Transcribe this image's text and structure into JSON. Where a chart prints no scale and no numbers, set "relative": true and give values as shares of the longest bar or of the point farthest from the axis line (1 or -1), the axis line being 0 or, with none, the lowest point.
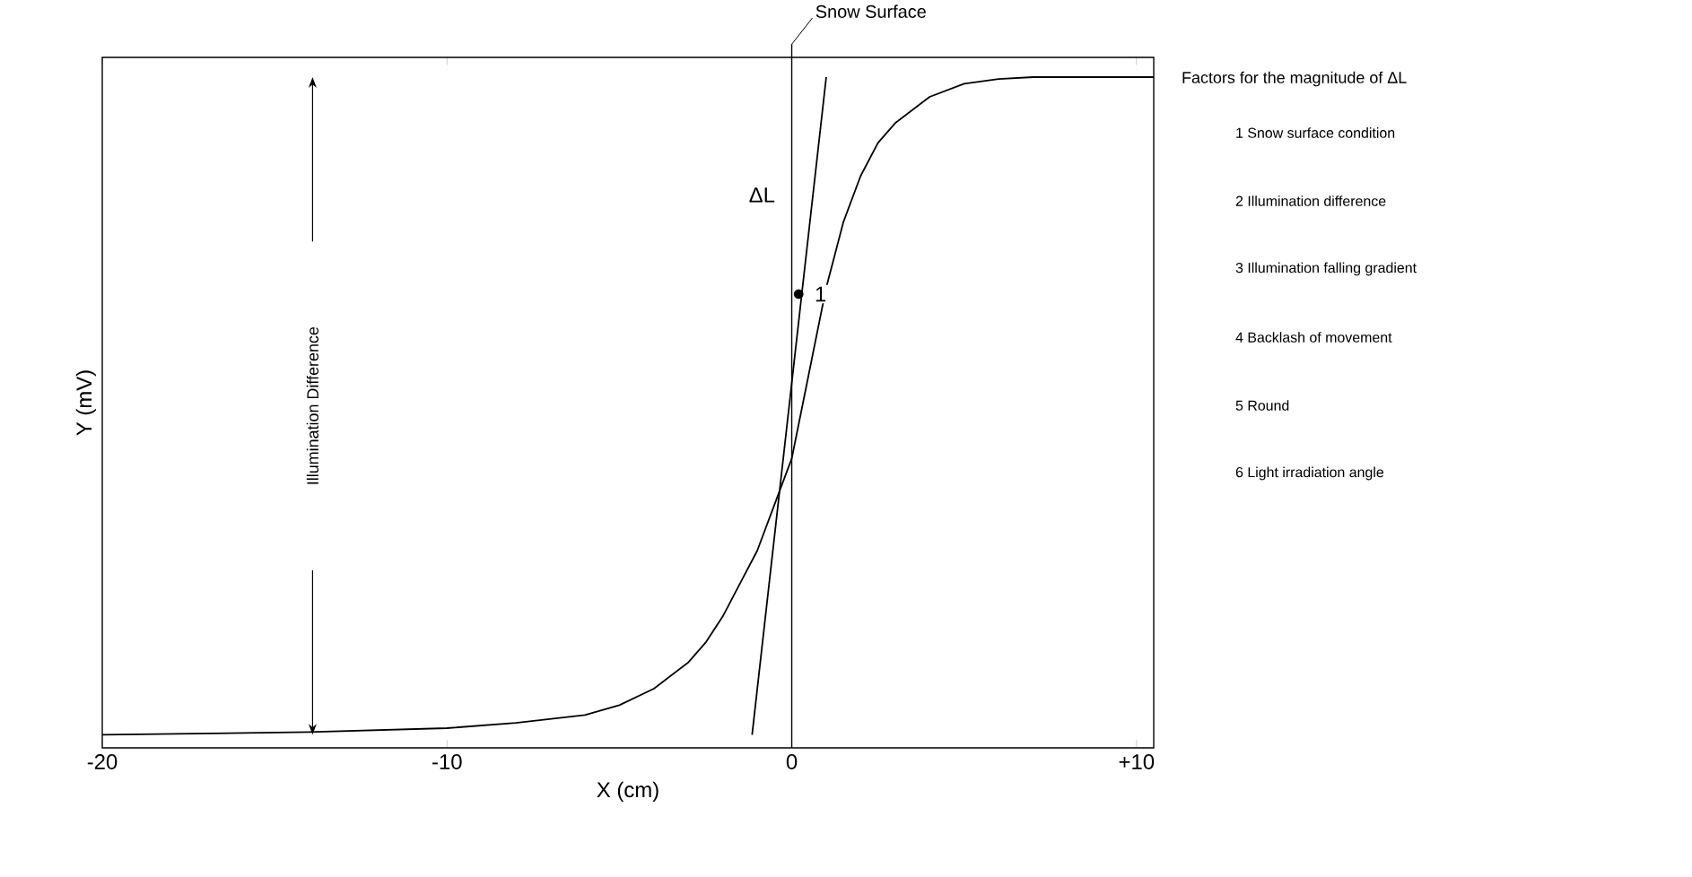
{
  "chart_data": {
    "type": "line",
    "relative": true,
    "xlabel": "X (cm)",
    "ylabel": "Y (mV)",
    "xlim": [
      -20,
      10.5
    ],
    "xticks": [
      -20,
      -10,
      0,
      {
        "value": 10,
        "label": "+10"
      }
    ],
    "grid": false,
    "series": [
      {
        "color": "#000000",
        "x": [
          -20,
          -14,
          -10,
          -8,
          -6,
          -5,
          -4,
          -3,
          -2.5,
          -2,
          -1.5,
          -1,
          -0.5,
          0,
          0.5,
          1,
          1.5,
          2,
          2.5,
          3,
          4,
          5,
          6,
          7,
          10.5
        ],
        "values": [
          0,
          0.004,
          0.01,
          0.018,
          0.03,
          0.045,
          0.07,
          0.11,
          0.14,
          0.18,
          0.23,
          0.28,
          0.35,
          0.42,
          0.55,
          0.68,
          0.78,
          0.85,
          0.9,
          0.93,
          0.97,
          0.99,
          0.997,
          1,
          1
        ]
      },
      {
        "color": "#000000",
        "x": [
          -1.15,
          1.0
        ],
        "values": [
          0,
          1
        ]
      },
      {
        "type": "scatter",
        "color": "#000000",
        "x": [
          0.2
        ],
        "values": [
          0.67
        ]
      }
    ],
    "ref_lines": [
      {
        "axis": "x",
        "value": 0,
        "label": "Snow Surface"
      }
    ],
    "annotations": [
      "Illumination Difference",
      "ΔL",
      "1",
      "Factors for the magnitude of ΔL",
      "1  Snow surface condition",
      "2  Illumination difference",
      "3  Illumination falling gradient",
      "4  Backlash of movement",
      "5  Round",
      "6  Light irradiation angle"
    ]
  }
}
